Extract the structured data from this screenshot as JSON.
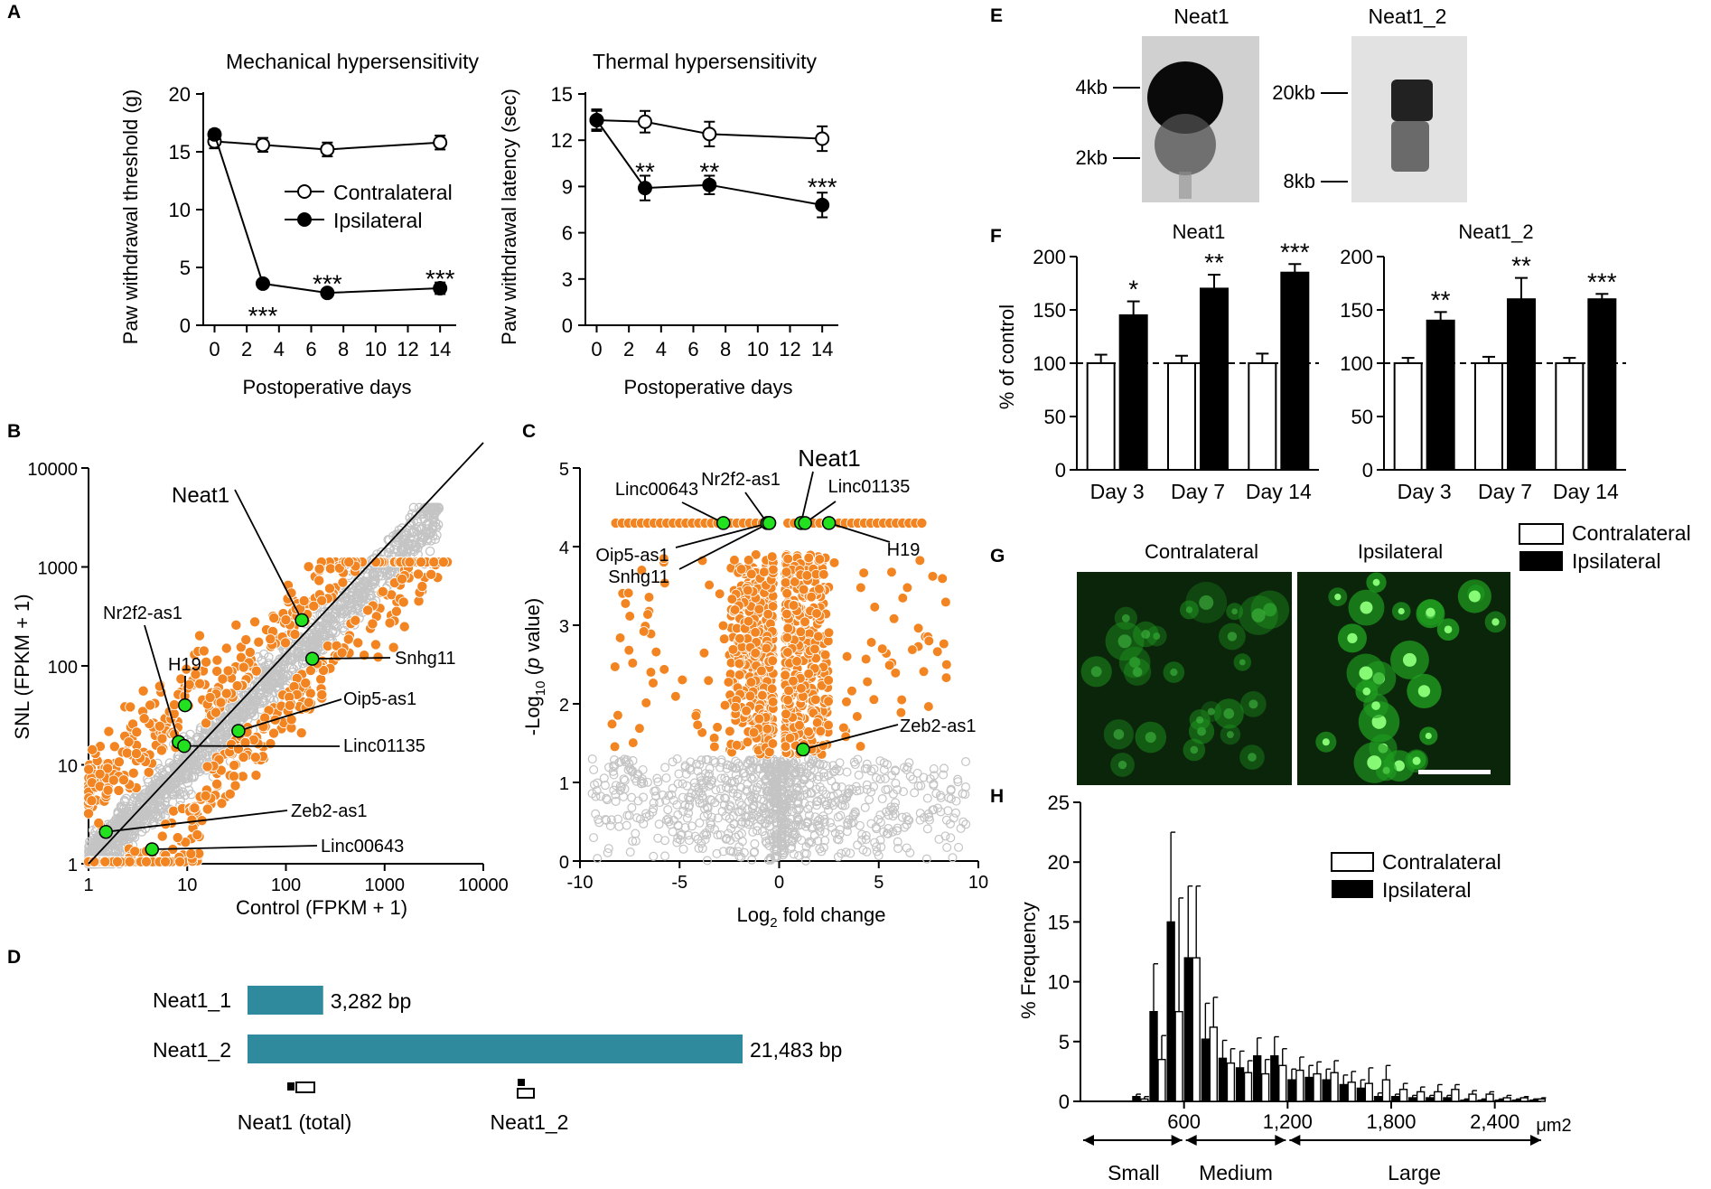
{
  "panel_letters": [
    "A",
    "B",
    "C",
    "D",
    "E",
    "F",
    "G",
    "H"
  ],
  "colors": {
    "orange": "#F28522",
    "grey": "#C4C4C4",
    "green": "#22E11E",
    "teal": "#2E8A9C",
    "micro_bg": "#0B250B",
    "micro_cell": "#1F9E1F"
  },
  "chart_data": [
    {
      "id": "A1",
      "type": "line",
      "title": "Mechanical hypersensitivity",
      "xlabel": "Postoperative days",
      "ylabel": "Paw withdrawal threshold (g)",
      "xlim": [
        -0.7,
        15
      ],
      "ylim": [
        0,
        20
      ],
      "xticks": [
        "0",
        "2",
        "4",
        "6",
        "8",
        "10",
        "12",
        "14"
      ],
      "yticks": [
        "0",
        "5",
        "10",
        "15",
        "20"
      ],
      "series": [
        {
          "name": "Contralateral",
          "marker": "open",
          "x": [
            0,
            3,
            7,
            14
          ],
          "y": [
            15.9,
            15.6,
            15.2,
            15.8
          ],
          "err": [
            0.6,
            0.6,
            0.6,
            0.6
          ]
        },
        {
          "name": "Ipsilateral",
          "marker": "filled",
          "x": [
            0,
            3,
            7,
            14
          ],
          "y": [
            16.5,
            3.6,
            2.8,
            3.2
          ],
          "err": [
            0.4,
            0.3,
            0.3,
            0.5
          ]
        }
      ],
      "annotations": [
        {
          "x": 3,
          "y": 1.0,
          "text": "***"
        },
        {
          "x": 7,
          "y": 3.8,
          "text": "***"
        },
        {
          "x": 14,
          "y": 4.2,
          "text": "***"
        }
      ],
      "legend": [
        "Contralateral",
        "Ipsilateral"
      ]
    },
    {
      "id": "A2",
      "type": "line",
      "title": "Thermal hypersensitivity",
      "xlabel": "Postoperative days",
      "ylabel": "Paw withdrawal latency (sec)",
      "xlim": [
        -0.7,
        15
      ],
      "ylim": [
        0,
        15
      ],
      "xticks": [
        "0",
        "2",
        "4",
        "6",
        "8",
        "10",
        "12",
        "14"
      ],
      "yticks": [
        "0",
        "3",
        "6",
        "9",
        "12",
        "15"
      ],
      "series": [
        {
          "name": "Contralateral",
          "marker": "open",
          "x": [
            0,
            3,
            7,
            14
          ],
          "y": [
            13.3,
            13.2,
            12.4,
            12.1
          ],
          "err": [
            0.7,
            0.7,
            0.8,
            0.8
          ]
        },
        {
          "name": "Ipsilateral",
          "marker": "filled",
          "x": [
            0,
            3,
            7,
            14
          ],
          "y": [
            13.3,
            8.9,
            9.1,
            7.8
          ],
          "err": [
            0.6,
            0.8,
            0.6,
            0.8
          ]
        }
      ],
      "annotations": [
        {
          "x": 3,
          "y": 10.1,
          "text": "**"
        },
        {
          "x": 7,
          "y": 10.1,
          "text": "**"
        },
        {
          "x": 14,
          "y": 9.1,
          "text": "***"
        }
      ]
    },
    {
      "id": "B",
      "type": "scatter",
      "xlabel": "Control  (FPKM + 1)",
      "ylabel": "SNL (FPKM + 1)",
      "xscale": "log",
      "yscale": "log",
      "xlim": [
        1,
        10000
      ],
      "ylim": [
        1,
        10000
      ],
      "xticks": [
        "1",
        "10",
        "100",
        "1000",
        "10000"
      ],
      "yticks": [
        "1",
        "10",
        "100",
        "1000",
        "10000"
      ],
      "highlighted": [
        {
          "name": "Neat1",
          "x": 145,
          "y": 290
        },
        {
          "name": "Nr2f2-as1",
          "x": 8.2,
          "y": 17
        },
        {
          "name": "H19",
          "x": 9.5,
          "y": 40
        },
        {
          "name": "Snhg11",
          "x": 185,
          "y": 118
        },
        {
          "name": "Oip5-as1",
          "x": 33,
          "y": 22
        },
        {
          "name": "Linc01135",
          "x": 9.3,
          "y": 15.5
        },
        {
          "name": "Zeb2-as1",
          "x": 1.5,
          "y": 2.1
        },
        {
          "name": "Linc00643",
          "x": 4.4,
          "y": 1.4
        }
      ],
      "significant_color": "orange",
      "nonsignificant_color": "grey",
      "diagonal": "y = x"
    },
    {
      "id": "C",
      "type": "scatter",
      "xlabel": "Log2 fold change",
      "ylabel": "-Log10 (p value)",
      "xlim": [
        -10,
        10
      ],
      "ylim": [
        0,
        5
      ],
      "xticks": [
        "-10",
        "-5",
        "0",
        "5",
        "10"
      ],
      "yticks": [
        "0",
        "1",
        "2",
        "3",
        "4",
        "5"
      ],
      "highlighted": [
        {
          "name": "Linc00643",
          "x": -2.8,
          "y": 4.3
        },
        {
          "name": "Nr2f2-as1",
          "x": -0.6,
          "y": 4.3
        },
        {
          "name": "Neat1",
          "x": 1.1,
          "y": 4.3
        },
        {
          "name": "Linc01135",
          "x": 1.3,
          "y": 4.3
        },
        {
          "name": "H19",
          "x": 2.5,
          "y": 4.3
        },
        {
          "name": "Oip5-as1",
          "x": -0.5,
          "y": 4.3
        },
        {
          "name": "Snhg11",
          "x": -0.5,
          "y": 4.3
        },
        {
          "name": "Zeb2-as1",
          "x": 1.2,
          "y": 1.42
        }
      ],
      "significance_threshold": 1.3
    },
    {
      "id": "F1",
      "type": "bar",
      "title": "Neat1",
      "ylabel": "% of control",
      "categories": [
        "Day 3",
        "Day 7",
        "Day 14"
      ],
      "ylim": [
        0,
        200
      ],
      "yticks": [
        "0",
        "50",
        "100",
        "150",
        "200"
      ],
      "series": [
        {
          "name": "Contralateral",
          "values": [
            100,
            100,
            100
          ],
          "err": [
            8,
            7,
            9
          ]
        },
        {
          "name": "Ipsilateral",
          "values": [
            145,
            170,
            185
          ],
          "err": [
            13,
            13,
            8
          ]
        }
      ],
      "stars": [
        "*",
        "**",
        "***"
      ],
      "reference_line": 100
    },
    {
      "id": "F2",
      "type": "bar",
      "title": "Neat1_2",
      "categories": [
        "Day 3",
        "Day 7",
        "Day 14"
      ],
      "ylim": [
        0,
        200
      ],
      "yticks": [
        "0",
        "50",
        "100",
        "150",
        "200"
      ],
      "series": [
        {
          "name": "Contralateral",
          "values": [
            100,
            100,
            100
          ],
          "err": [
            5,
            6,
            5
          ]
        },
        {
          "name": "Ipsilateral",
          "values": [
            140,
            160,
            160
          ],
          "err": [
            8,
            20,
            5
          ]
        }
      ],
      "stars": [
        "**",
        "**",
        "***"
      ],
      "reference_line": 100
    },
    {
      "id": "H",
      "type": "bar",
      "ylabel": "% Frequency",
      "xunit": "μm2",
      "ylim": [
        0,
        25
      ],
      "yticks": [
        "0",
        "5",
        "10",
        "15",
        "20",
        "25"
      ],
      "xticks": [
        "600",
        "1,200",
        "1,800",
        "2,400"
      ],
      "xlim": [
        0,
        2700
      ],
      "bin_width": 100,
      "bin_starts": [
        300,
        400,
        500,
        600,
        700,
        800,
        900,
        1000,
        1100,
        1200,
        1300,
        1400,
        1500,
        1600,
        1700,
        1800,
        1900,
        2000,
        2100,
        2200,
        2300,
        2400,
        2500,
        2600
      ],
      "series": [
        {
          "name": "Contralateral",
          "values": [
            0.2,
            3.5,
            7.5,
            12.0,
            6.2,
            3.2,
            2.4,
            2.3,
            3.0,
            2.6,
            2.3,
            2.4,
            1.6,
            1.5,
            1.8,
            1.0,
            0.8,
            0.8,
            1.0,
            0.6,
            0.6,
            0.3,
            0.3,
            0.2
          ],
          "err": [
            0.2,
            2.0,
            9.5,
            6.0,
            2.5,
            1.2,
            1.0,
            1.2,
            1.4,
            1.1,
            1.0,
            1.0,
            0.9,
            1.3,
            1.2,
            0.5,
            0.4,
            0.6,
            0.4,
            0.3,
            0.2,
            0.2,
            0.1,
            0.1
          ]
        },
        {
          "name": "Ipsilateral",
          "values": [
            0.4,
            7.5,
            15.0,
            12.0,
            5.2,
            3.6,
            2.8,
            3.8,
            3.8,
            1.8,
            2.0,
            1.8,
            1.4,
            1.1,
            0.4,
            0.4,
            0.3,
            0.3,
            0.3,
            0.1,
            0.1,
            0.1,
            0.1,
            0.1
          ],
          "err": [
            0.2,
            4.0,
            7.5,
            6.0,
            3.0,
            1.5,
            1.4,
            1.5,
            1.6,
            0.9,
            1.0,
            0.9,
            0.8,
            0.7,
            0.3,
            0.2,
            0.2,
            0.2,
            0.2,
            0.1,
            0.1,
            0.1,
            0.1,
            0.1
          ]
        }
      ],
      "size_classes": [
        "Small",
        "Medium",
        "Large"
      ],
      "legend": [
        "Contralateral",
        "Ipsilateral"
      ]
    }
  ],
  "panelD": {
    "items": [
      {
        "name": "Neat1_1",
        "length": "3,282 bp",
        "bp": 3282
      },
      {
        "name": "Neat1_2",
        "length": "21,483 bp",
        "bp": 21483
      }
    ],
    "probes": [
      "Neat1 (total)",
      "Neat1_2"
    ]
  },
  "panelE": {
    "blots": [
      {
        "title": "Neat1",
        "markers": [
          "4kb",
          "2kb"
        ]
      },
      {
        "title": "Neat1_2",
        "markers": [
          "20kb",
          "8kb"
        ]
      }
    ]
  },
  "panelF_legend": [
    "Contralateral",
    "Ipsilateral"
  ],
  "panelG": {
    "titles": [
      "Contralateral",
      "Ipsilateral"
    ]
  }
}
